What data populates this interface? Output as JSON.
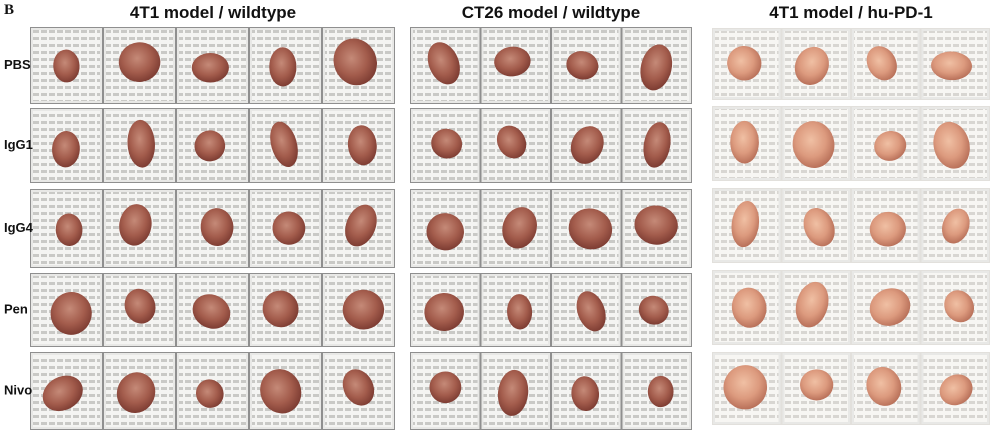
{
  "panel_label": "B",
  "panels": [
    {
      "title": "4T1 model / wildtype"
    },
    {
      "title": "CT26 model / wildtype"
    },
    {
      "title": "4T1 model / hu-PD-1"
    }
  ],
  "rows": [
    "PBS",
    "IgG1",
    "IgG4",
    "Pen",
    "Nivo"
  ]
}
